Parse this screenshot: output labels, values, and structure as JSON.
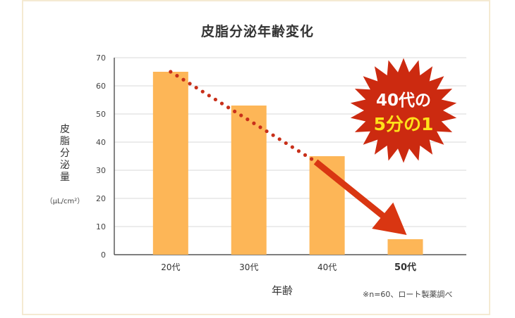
{
  "colors": {
    "bar": "#fdb657",
    "grid": "#d9d9d9",
    "dots": "#c8301a",
    "arrow": "#d93612",
    "burst": "#cc2a10",
    "burst_text": "#ffffff",
    "burst_highlight": "#ffe11a",
    "frame": "#f5ead2"
  },
  "chart_data": {
    "type": "bar",
    "title": "皮脂分泌年齢変化",
    "xlabel": "年齢",
    "ylabel": "皮脂分泌量",
    "yunit": "（μL/cm²）",
    "categories": [
      "20代",
      "30代",
      "40代",
      "50代"
    ],
    "values": [
      65,
      53,
      35,
      5.5
    ],
    "ylim": [
      0,
      70
    ],
    "yticks": [
      0,
      10,
      20,
      30,
      40,
      50,
      60,
      70
    ],
    "grid": true,
    "note": "※n=60、ロート製薬調べ",
    "callout": {
      "line1": "40代の",
      "line2": "5分の1"
    }
  }
}
